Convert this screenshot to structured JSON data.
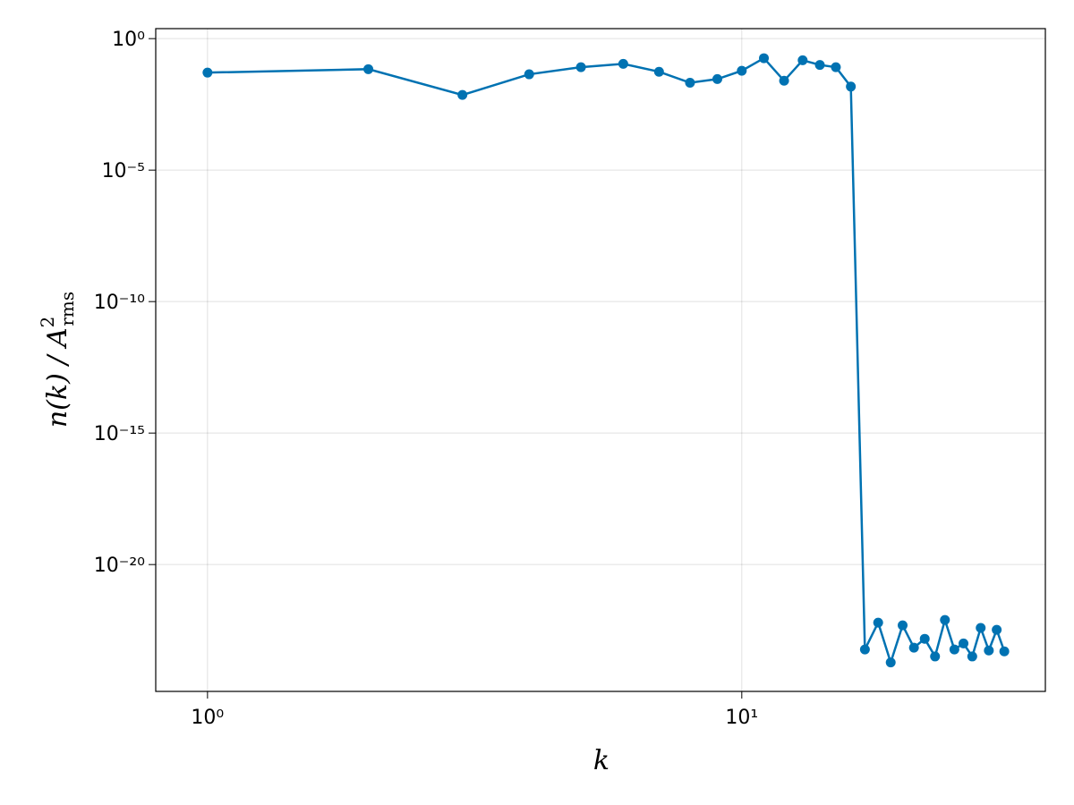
{
  "chart_data": {
    "type": "line",
    "xlabel": "k",
    "ylabel": {
      "main": "n(k) / A",
      "sup": "2",
      "sub": "rms"
    },
    "log_x": true,
    "log_y": true,
    "grid": true,
    "x": [
      1,
      2,
      3,
      4,
      5,
      6,
      7,
      8,
      9,
      10,
      11,
      12,
      13,
      14,
      15,
      16,
      17,
      18,
      19,
      20,
      21,
      22,
      23,
      24,
      25,
      26,
      27,
      28,
      29,
      30,
      31
    ],
    "series": [
      {
        "name": "n(k)",
        "color": "#0072b2",
        "values": [
          0.051,
          0.069,
          0.0072,
          0.044,
          0.082,
          0.11,
          0.055,
          0.021,
          0.029,
          0.06,
          0.18,
          0.025,
          0.15,
          0.1,
          0.082,
          0.015,
          5.9e-24,
          6.2e-23,
          1.9e-24,
          4.9e-23,
          6.9e-24,
          1.5e-23,
          3.2e-24,
          7.8e-23,
          5.9e-24,
          1e-23,
          3.2e-24,
          3.9e-23,
          5.4e-24,
          3.3e-23,
          5e-24
        ]
      }
    ],
    "xlim": [
      0.8,
      37
    ],
    "ylim": [
      1.5e-25,
      2.4
    ],
    "xticks": [
      {
        "value": 1,
        "label": "10⁰"
      },
      {
        "value": 10,
        "label": "10¹"
      }
    ],
    "yticks": [
      {
        "value": 1,
        "label": "10⁰"
      },
      {
        "value": 1e-05,
        "label": "10⁻⁵"
      },
      {
        "value": 1e-10,
        "label": "10⁻¹⁰"
      },
      {
        "value": 1e-15,
        "label": "10⁻¹⁵"
      },
      {
        "value": 1e-20,
        "label": "10⁻²⁰"
      }
    ]
  }
}
